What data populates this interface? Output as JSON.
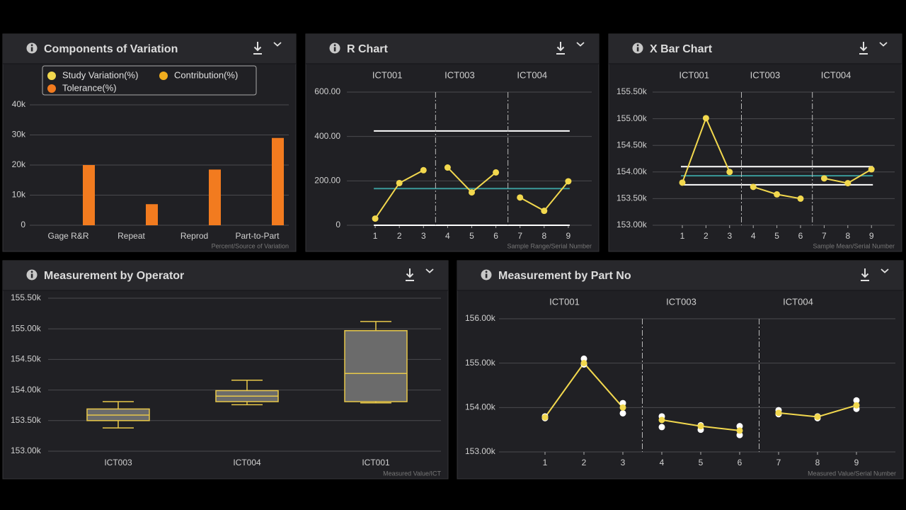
{
  "chart_data": [
    {
      "type": "bar",
      "title": "Components of Variation",
      "categories": [
        "Gage R&R",
        "Repeat",
        "Reprod",
        "Part-to-Part"
      ],
      "series": [
        {
          "name": "Study Variation(%)",
          "color": "#f2d84e",
          "values": [
            null,
            null,
            null,
            null
          ]
        },
        {
          "name": "Contribution(%)",
          "color": "#f0ad1e",
          "values": [
            null,
            null,
            null,
            null
          ]
        },
        {
          "name": "Tolerance(%)",
          "color": "#f27b1f",
          "values": [
            20000,
            7000,
            18500,
            29000
          ]
        }
      ],
      "ylim": [
        0,
        40000
      ],
      "yticks": [
        0,
        {
          "value": 10000,
          "label": "10k"
        },
        {
          "value": 20000,
          "label": "20k"
        },
        {
          "value": 30000,
          "label": "30k"
        },
        {
          "value": 40000,
          "label": "40k"
        }
      ],
      "xlabel": "Percent/Source of Variation",
      "grid": true
    },
    {
      "type": "line",
      "title": "R Chart",
      "color": "#f2d84e",
      "series": [
        {
          "name": "ICT001",
          "x": [
            1,
            2,
            3
          ],
          "values": [
            30,
            190,
            248
          ]
        },
        {
          "name": "ICT003",
          "x": [
            4,
            5,
            6
          ],
          "values": [
            260,
            148,
            238
          ]
        },
        {
          "name": "ICT004",
          "x": [
            7,
            8,
            9
          ],
          "values": [
            125,
            65,
            198
          ]
        }
      ],
      "reference_lines": [
        {
          "value": 425,
          "color": "#ffffff"
        },
        {
          "value": 165,
          "color": "#3a9a9a"
        },
        {
          "value": 0,
          "color": "#ffffff"
        }
      ],
      "xlim": [
        0,
        10
      ],
      "xticks": [
        1,
        2,
        3,
        4,
        5,
        6,
        7,
        8,
        9
      ],
      "ylim": [
        0,
        600
      ],
      "yticks": [
        0,
        {
          "value": 200,
          "label": "200.00"
        },
        {
          "value": 400,
          "label": "400.00"
        },
        {
          "value": 600,
          "label": "600.00"
        }
      ],
      "xlabel": "Sample Range/Serial Number",
      "grid": true
    },
    {
      "type": "line",
      "title": "X Bar Chart",
      "color": "#f2d84e",
      "series": [
        {
          "name": "ICT001",
          "x": [
            1,
            2,
            3
          ],
          "values": [
            153800,
            155010,
            154000
          ]
        },
        {
          "name": "ICT003",
          "x": [
            4,
            5,
            6
          ],
          "values": [
            153720,
            153580,
            153500
          ]
        },
        {
          "name": "ICT004",
          "x": [
            7,
            8,
            9
          ],
          "values": [
            153880,
            153790,
            154050
          ]
        }
      ],
      "reference_lines": [
        {
          "value": 154100,
          "color": "#ffffff"
        },
        {
          "value": 153930,
          "color": "#3a9a9a"
        },
        {
          "value": 153760,
          "color": "#ffffff"
        }
      ],
      "xlim": [
        0,
        10
      ],
      "xticks": [
        1,
        2,
        3,
        4,
        5,
        6,
        7,
        8,
        9
      ],
      "ylim": [
        153000,
        155500
      ],
      "yticks": [
        {
          "value": 153000,
          "label": "153.00k"
        },
        {
          "value": 153500,
          "label": "153.50k"
        },
        {
          "value": 154000,
          "label": "154.00k"
        },
        {
          "value": 154500,
          "label": "154.50k"
        },
        {
          "value": 155000,
          "label": "155.00k"
        },
        {
          "value": 155500,
          "label": "155.50k"
        }
      ],
      "xlabel": "Sample Mean/Serial Number",
      "grid": true
    },
    {
      "type": "box",
      "title": "Measurement by Operator",
      "color": "#e8c84a",
      "box_fill": "#6b6b6b",
      "categories": [
        "ICT003",
        "ICT004",
        "ICT001"
      ],
      "boxes": [
        {
          "min": 153380,
          "q1": 153500,
          "median": 153590,
          "q3": 153690,
          "max": 153810
        },
        {
          "min": 153760,
          "q1": 153810,
          "median": 153900,
          "q3": 153990,
          "max": 154160
        },
        {
          "min": 153790,
          "q1": 153810,
          "median": 154270,
          "q3": 154970,
          "max": 155120
        }
      ],
      "ylim": [
        153000,
        155500
      ],
      "yticks": [
        {
          "value": 153000,
          "label": "153.00k"
        },
        {
          "value": 153500,
          "label": "153.50k"
        },
        {
          "value": 154000,
          "label": "154.00k"
        },
        {
          "value": 154500,
          "label": "154.50k"
        },
        {
          "value": 155000,
          "label": "155.00k"
        },
        {
          "value": 155500,
          "label": "155.50k"
        }
      ],
      "xlabel": "Measured Value/ICT",
      "grid": true
    },
    {
      "type": "line",
      "title": "Measurement by Part No",
      "color": "#f2d84e",
      "sample_color": "#ffffff",
      "series": [
        {
          "name": "ICT001",
          "x": [
            1,
            2,
            3
          ],
          "values": [
            153780,
            155000,
            154000
          ],
          "samples": [
            [
              153800,
              153760
            ],
            [
              155100,
              154970
            ],
            [
              154100,
              153870
            ]
          ]
        },
        {
          "name": "ICT003",
          "x": [
            4,
            5,
            6
          ],
          "values": [
            153720,
            153580,
            153480
          ],
          "samples": [
            [
              153800,
              153560
            ],
            [
              153600,
              153500
            ],
            [
              153580,
              153380
            ]
          ]
        },
        {
          "name": "ICT004",
          "x": [
            7,
            8,
            9
          ],
          "values": [
            153880,
            153790,
            154050
          ],
          "samples": [
            [
              153940,
              153850
            ],
            [
              153800,
              153760
            ],
            [
              154160,
              153970
            ]
          ]
        }
      ],
      "xlim": [
        0,
        10
      ],
      "xticks": [
        1,
        2,
        3,
        4,
        5,
        6,
        7,
        8,
        9
      ],
      "ylim": [
        153000,
        156000
      ],
      "yticks": [
        {
          "value": 153000,
          "label": "153.00k"
        },
        {
          "value": 154000,
          "label": "154.00k"
        },
        {
          "value": 155000,
          "label": "155.00k"
        },
        {
          "value": 156000,
          "label": "156.00k"
        }
      ],
      "xlabel": "Measured Value/Serial Number",
      "grid": true
    }
  ]
}
